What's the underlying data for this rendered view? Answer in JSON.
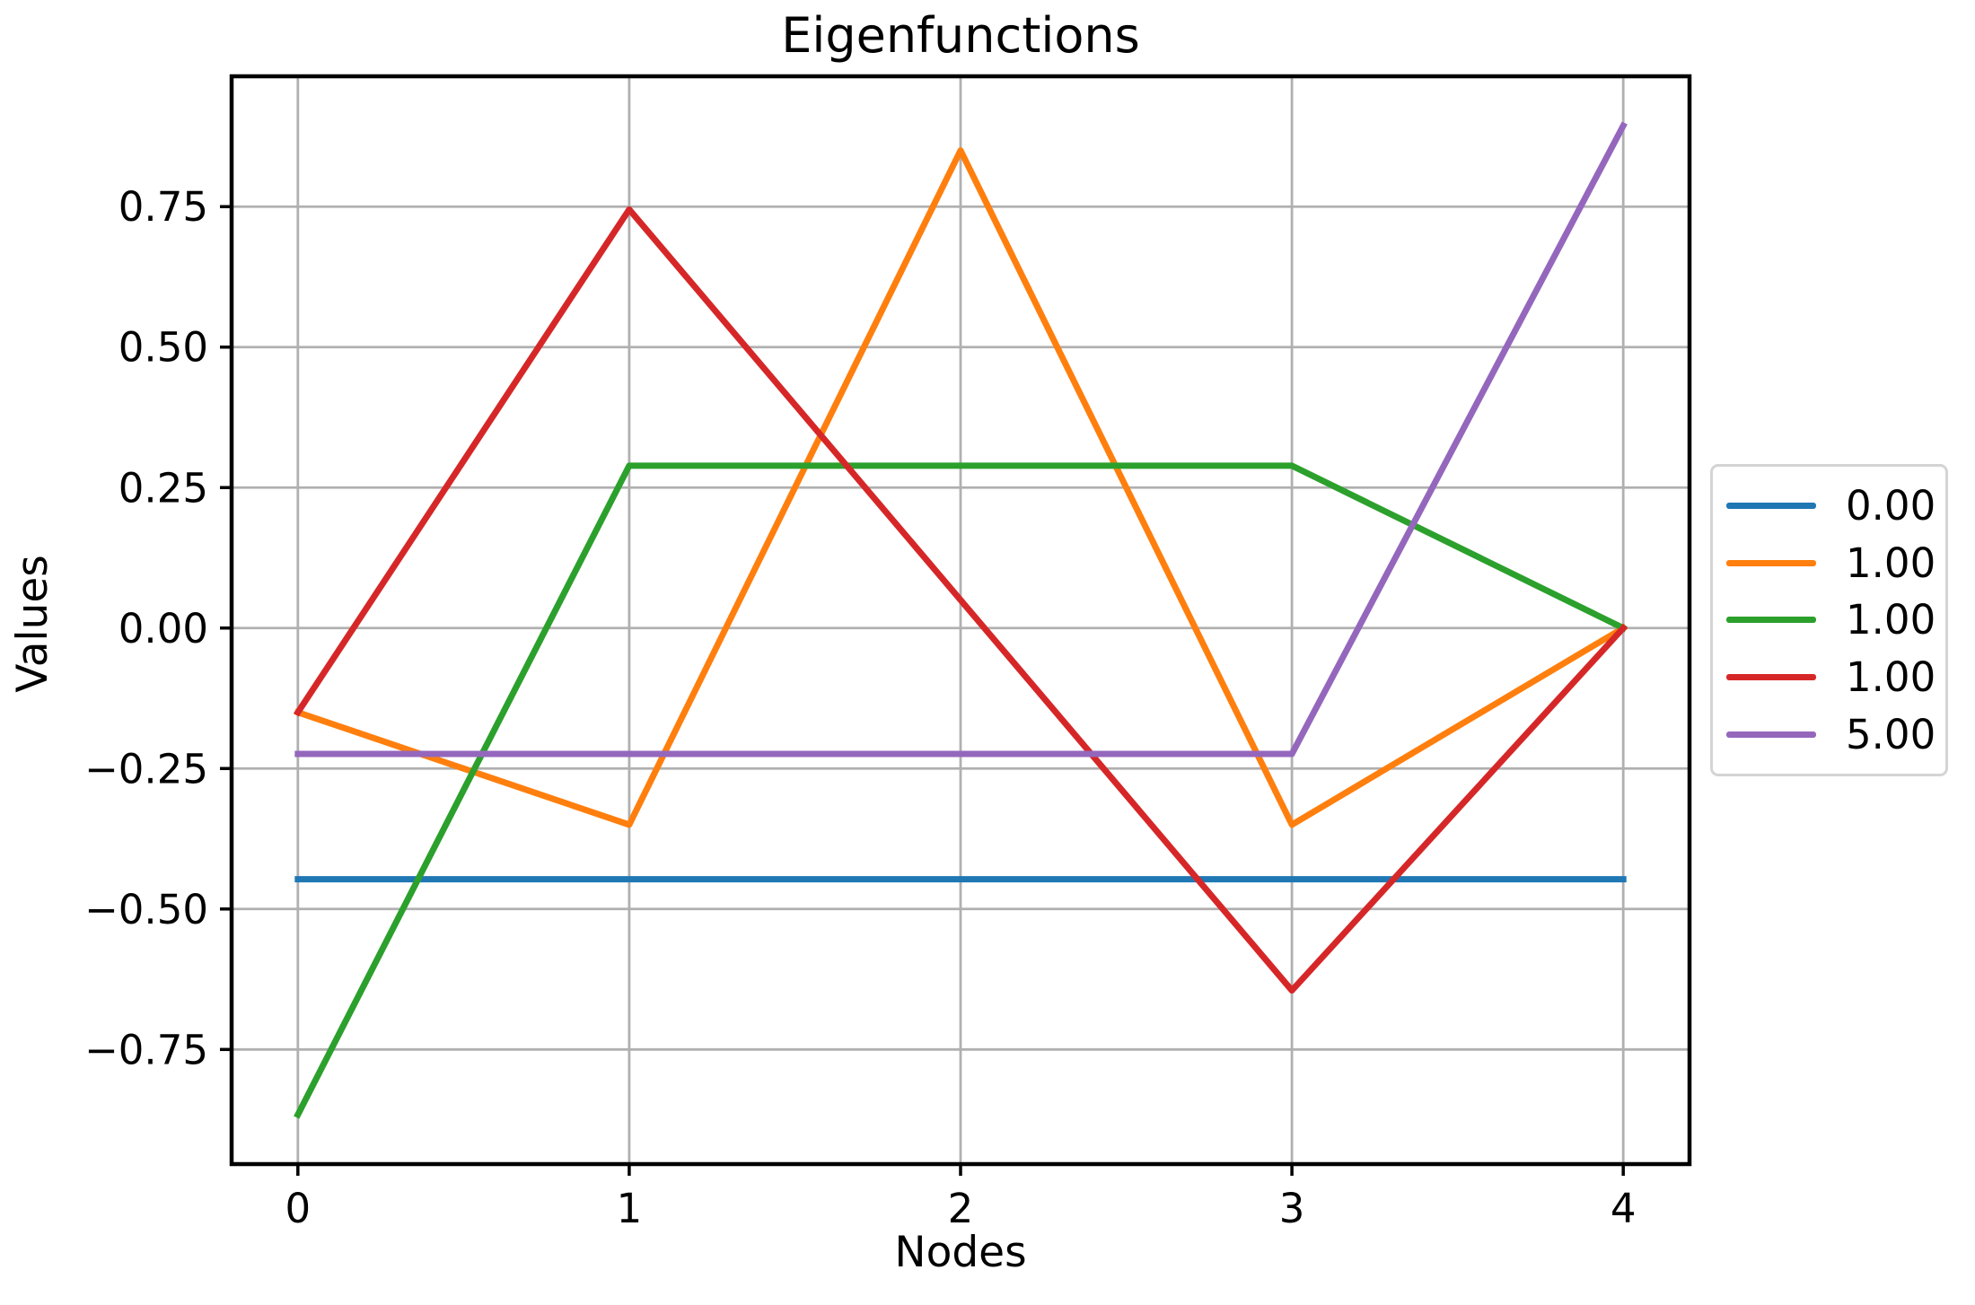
{
  "chart_data": {
    "type": "line",
    "title": "Eigenfunctions",
    "xlabel": "Nodes",
    "ylabel": "Values",
    "x": [
      0,
      1,
      2,
      3,
      4
    ],
    "xlim": [
      -0.2,
      4.2
    ],
    "ylim": [
      -0.954,
      0.982
    ],
    "xticks": {
      "values": [
        0,
        1,
        2,
        3,
        4
      ],
      "labels": [
        "0",
        "1",
        "2",
        "3",
        "4"
      ]
    },
    "yticks": {
      "values": [
        -0.75,
        -0.5,
        -0.25,
        0.0,
        0.25,
        0.5,
        0.75
      ],
      "labels": [
        "−0.75",
        "−0.50",
        "−0.25",
        "0.00",
        "0.25",
        "0.50",
        "0.75"
      ]
    },
    "grid": true,
    "legend": {
      "position": "center-right-outside",
      "labels": [
        "0.00",
        "1.00",
        "1.00",
        "1.00",
        "5.00"
      ]
    },
    "series": [
      {
        "name": "0.00",
        "color": "#1f77b4",
        "values": [
          -0.447,
          -0.447,
          -0.447,
          -0.447,
          -0.447
        ]
      },
      {
        "name": "1.00",
        "color": "#ff7f0e",
        "values": [
          -0.15,
          -0.35,
          0.85,
          -0.35,
          0.0
        ]
      },
      {
        "name": "1.00",
        "color": "#2ca02c",
        "values": [
          -0.866,
          0.289,
          0.289,
          0.289,
          0.0
        ]
      },
      {
        "name": "1.00",
        "color": "#d62728",
        "values": [
          -0.15,
          0.745,
          0.05,
          -0.645,
          0.0
        ]
      },
      {
        "name": "5.00",
        "color": "#9467bd",
        "values": [
          -0.224,
          -0.224,
          -0.224,
          -0.224,
          0.894
        ]
      }
    ],
    "colors": {
      "grid": "#b0b0b0",
      "spine": "#000000",
      "legend_border": "#d4d4d4",
      "background": "#ffffff"
    }
  }
}
